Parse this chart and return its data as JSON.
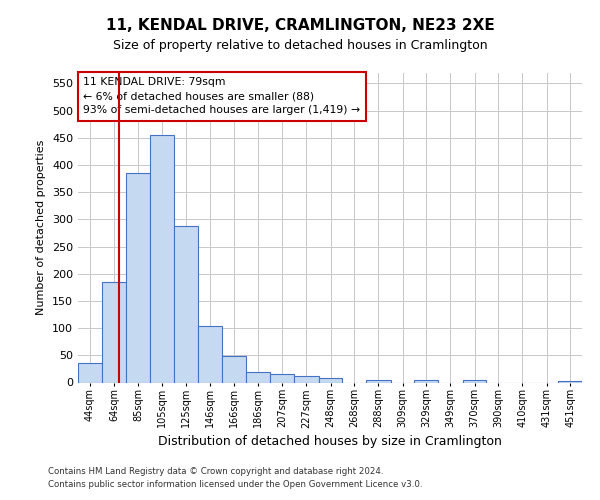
{
  "title": "11, KENDAL DRIVE, CRAMLINGTON, NE23 2XE",
  "subtitle": "Size of property relative to detached houses in Cramlington",
  "xlabel": "Distribution of detached houses by size in Cramlington",
  "ylabel": "Number of detached properties",
  "footnote1": "Contains HM Land Registry data © Crown copyright and database right 2024.",
  "footnote2": "Contains public sector information licensed under the Open Government Licence v3.0.",
  "annotation_title": "11 KENDAL DRIVE: 79sqm",
  "annotation_line2": "← 6% of detached houses are smaller (88)",
  "annotation_line3": "93% of semi-detached houses are larger (1,419) →",
  "bar_color": "#c5d9f1",
  "bar_edge_color": "#4472c4",
  "vline_color": "#cc0000",
  "vline_x": 79,
  "categories": [
    "44sqm",
    "64sqm",
    "85sqm",
    "105sqm",
    "125sqm",
    "146sqm",
    "166sqm",
    "186sqm",
    "207sqm",
    "227sqm",
    "248sqm",
    "268sqm",
    "288sqm",
    "309sqm",
    "329sqm",
    "349sqm",
    "370sqm",
    "390sqm",
    "410sqm",
    "431sqm",
    "451sqm"
  ],
  "bin_edges": [
    44,
    64,
    85,
    105,
    125,
    146,
    166,
    186,
    207,
    227,
    248,
    268,
    288,
    309,
    329,
    349,
    370,
    390,
    410,
    431,
    451,
    471
  ],
  "values": [
    35,
    185,
    385,
    455,
    287,
    103,
    48,
    20,
    15,
    12,
    8,
    0,
    5,
    0,
    5,
    0,
    5,
    0,
    0,
    0,
    3
  ],
  "ylim": [
    0,
    570
  ],
  "yticks": [
    0,
    50,
    100,
    150,
    200,
    250,
    300,
    350,
    400,
    450,
    500,
    550
  ],
  "background_color": "#ffffff",
  "grid_color": "#c8c8c8",
  "title_fontsize": 11,
  "subtitle_fontsize": 9,
  "ylabel_fontsize": 8,
  "xlabel_fontsize": 9
}
